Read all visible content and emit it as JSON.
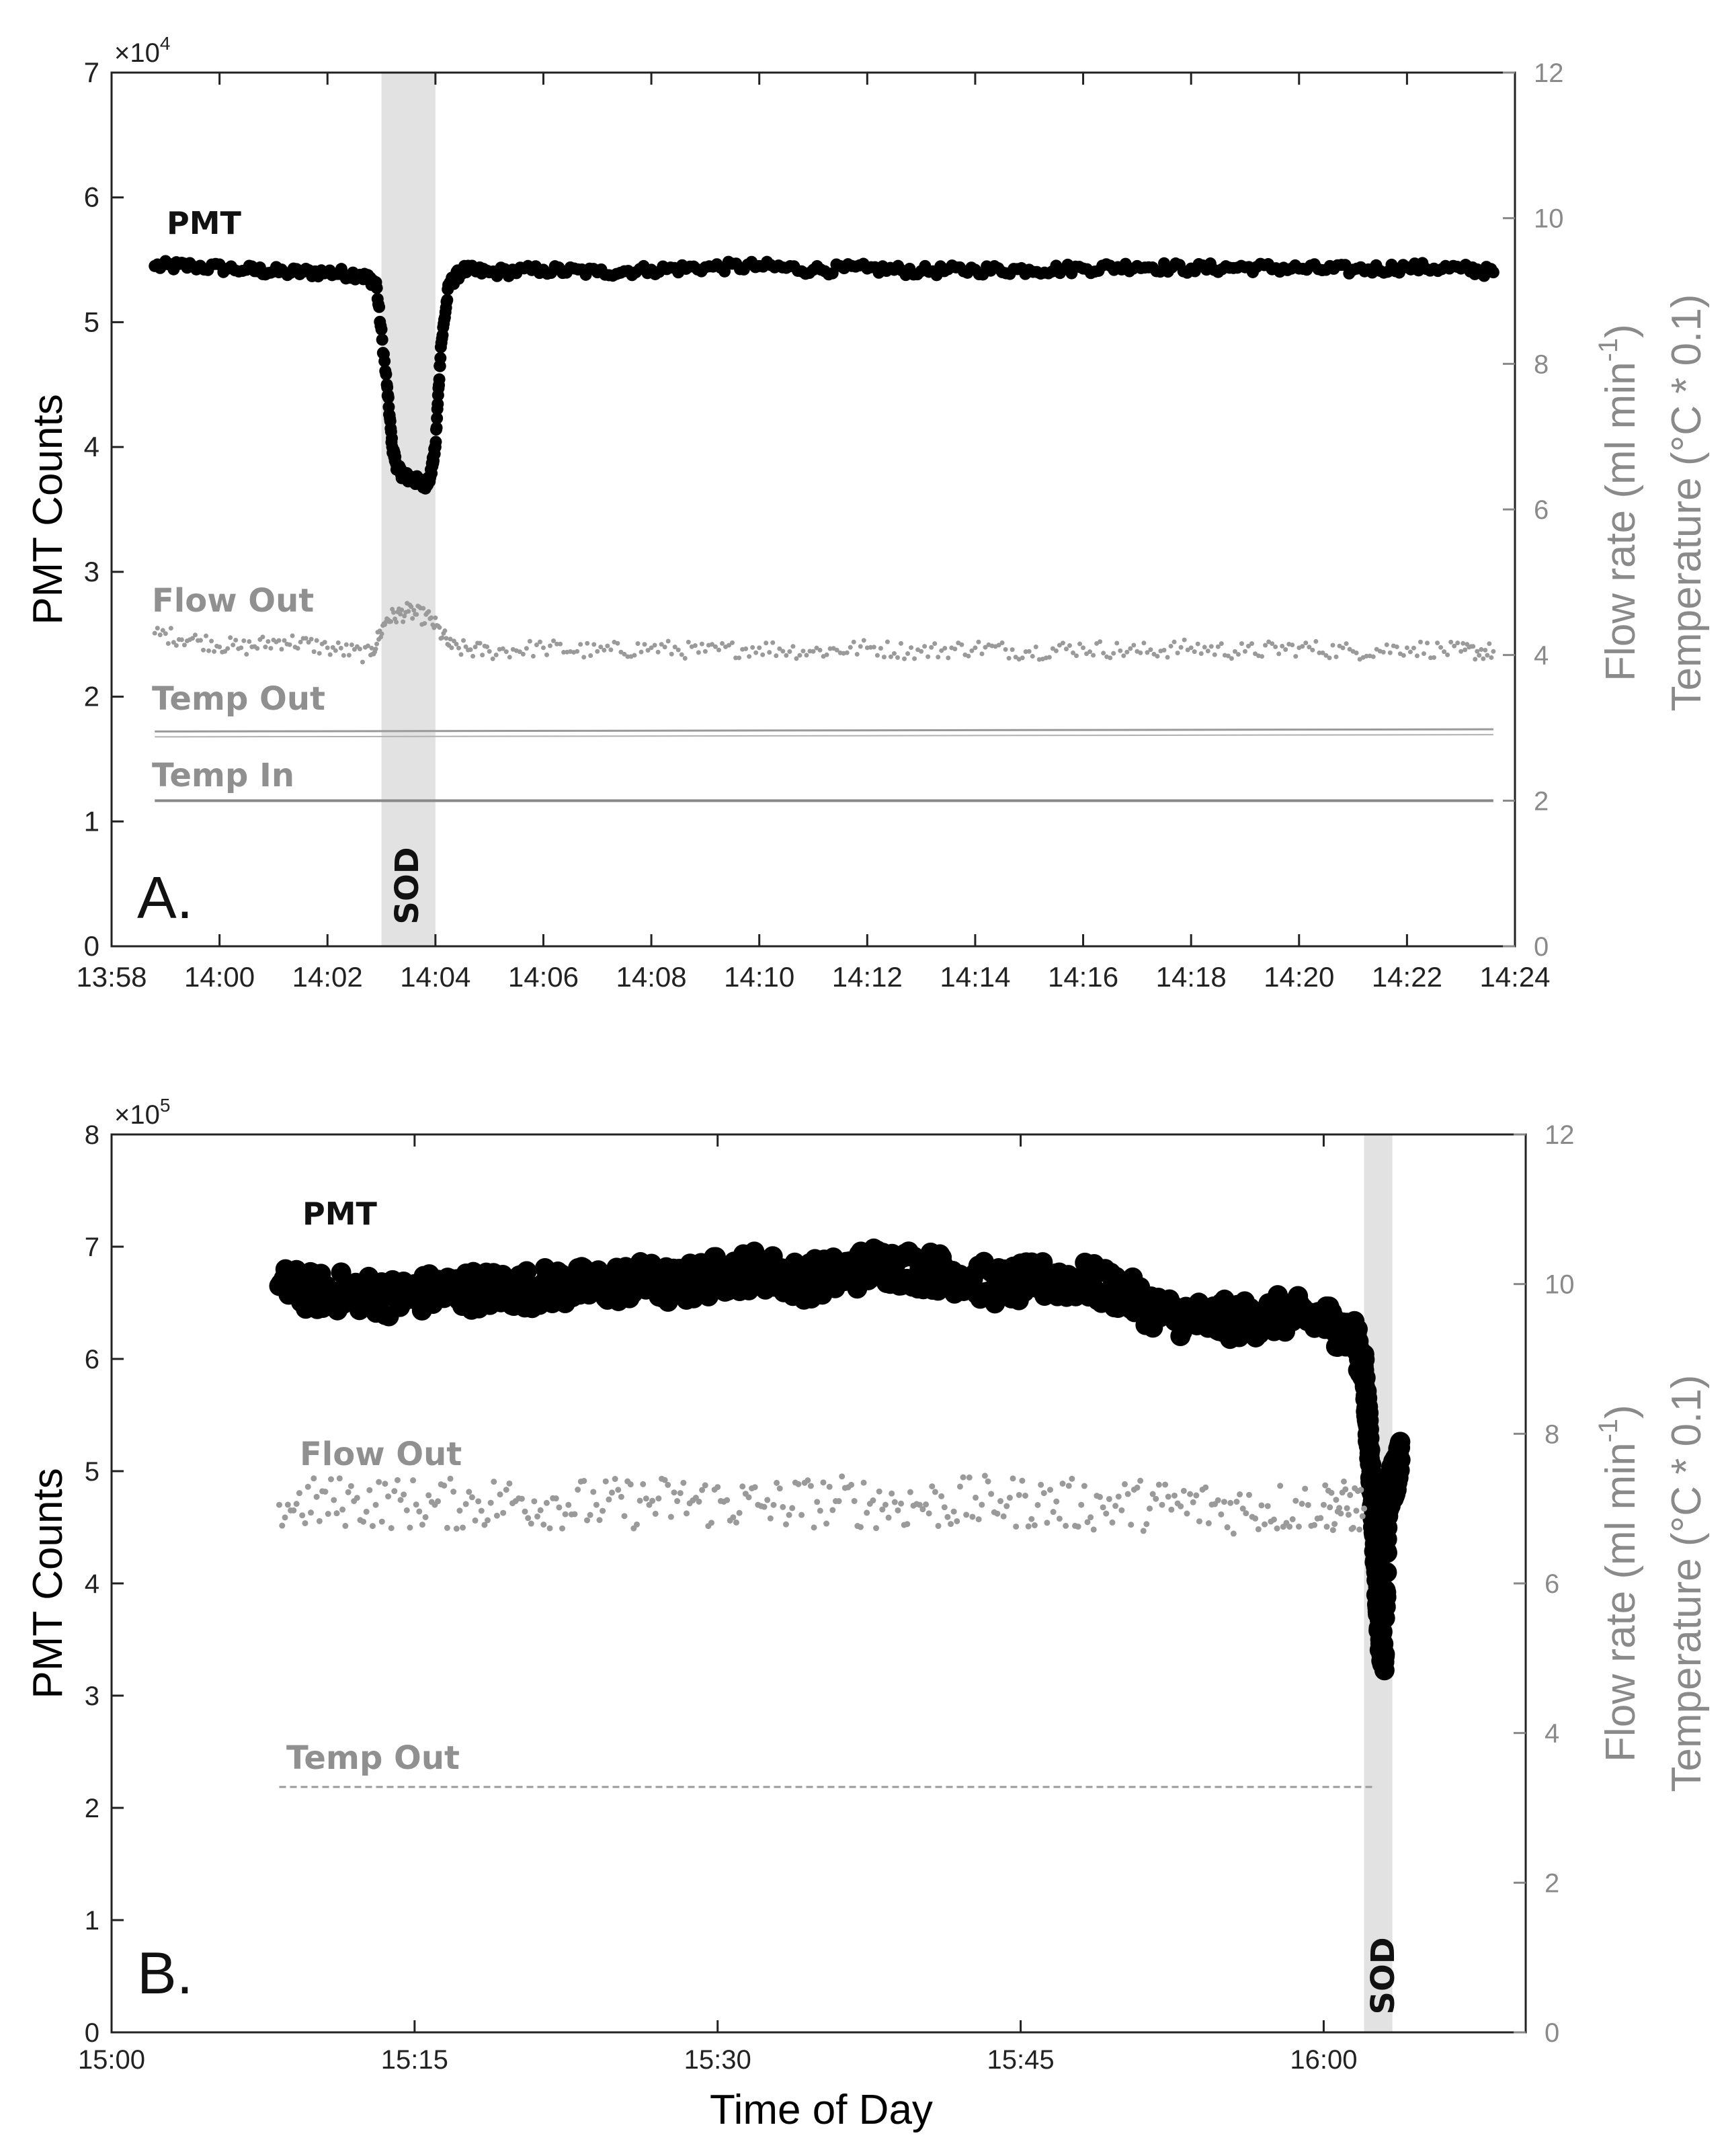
{
  "chart_data": [
    {
      "panel_label": "A.",
      "type": "scatter",
      "xlabel": "",
      "ylabel": "PMT Counts",
      "y2label_flow": "Flow rate (ml min",
      "y2label_flow_sup": "-1",
      "y2label_flow_end": ")",
      "y2label_temp": "Temperature (°C * 0.1)",
      "y_exponent_base": "×10",
      "y_exponent": "4",
      "xlim_minutes": [
        838,
        864
      ],
      "x_ticks": [
        {
          "v": 838,
          "label": "13:58"
        },
        {
          "v": 840,
          "label": "14:00"
        },
        {
          "v": 842,
          "label": "14:02"
        },
        {
          "v": 844,
          "label": "14:04"
        },
        {
          "v": 846,
          "label": "14:06"
        },
        {
          "v": 848,
          "label": "14:08"
        },
        {
          "v": 850,
          "label": "14:10"
        },
        {
          "v": 852,
          "label": "14:12"
        },
        {
          "v": 854,
          "label": "14:14"
        },
        {
          "v": 856,
          "label": "14:16"
        },
        {
          "v": 858,
          "label": "14:18"
        },
        {
          "v": 860,
          "label": "14:20"
        },
        {
          "v": 862,
          "label": "14:22"
        },
        {
          "v": 864,
          "label": "14:24"
        }
      ],
      "ylim": [
        0,
        7
      ],
      "y_ticks": [
        0,
        1,
        2,
        3,
        4,
        5,
        6,
        7
      ],
      "y2lim": [
        0,
        12
      ],
      "y2_ticks": [
        0,
        2,
        4,
        6,
        8,
        10,
        12
      ],
      "shaded_region": {
        "x_start": 843.0,
        "x_end": 844.0,
        "label": "SOD"
      },
      "series": [
        {
          "name": "PMT",
          "axis": "left",
          "x": [
            838.8,
            839.5,
            840.5,
            841.2,
            842.0,
            842.6,
            842.9,
            843.1,
            843.2,
            843.3,
            843.45,
            843.6,
            843.8,
            843.9,
            844.0,
            844.1,
            844.25,
            844.5,
            845.0,
            846.0,
            847.0,
            848.0,
            849.0,
            850.0,
            851.0,
            852.0,
            853.0,
            854.0,
            855.0,
            856.0,
            857.0,
            858.0,
            859.0,
            860.0,
            861.0,
            862.0,
            863.0,
            863.6
          ],
          "values": [
            5.45,
            5.45,
            5.42,
            5.4,
            5.4,
            5.38,
            5.32,
            4.5,
            4.0,
            3.82,
            3.76,
            3.74,
            3.7,
            3.75,
            4.0,
            4.8,
            5.3,
            5.42,
            5.4,
            5.42,
            5.4,
            5.42,
            5.44,
            5.45,
            5.42,
            5.43,
            5.41,
            5.42,
            5.42,
            5.43,
            5.45,
            5.43,
            5.44,
            5.43,
            5.42,
            5.44,
            5.43,
            5.4
          ]
        },
        {
          "name": "Flow Out",
          "axis": "right",
          "x": [
            838.8,
            839.6,
            840.4,
            841.2,
            842.0,
            842.8,
            843.1,
            843.5,
            843.9,
            844.3,
            845.0,
            846.0,
            847.0,
            848.0,
            849.0,
            850.0,
            851.0,
            852.0,
            853.0,
            854.0,
            855.0,
            856.0,
            857.0,
            858.0,
            859.0,
            860.0,
            861.0,
            862.0,
            863.0,
            863.6
          ],
          "values": [
            4.3,
            4.2,
            4.1,
            4.2,
            4.1,
            4.0,
            4.5,
            4.6,
            4.5,
            4.1,
            4.05,
            4.1,
            4.05,
            4.1,
            4.05,
            4.1,
            4.05,
            4.1,
            4.05,
            4.1,
            4.05,
            4.1,
            4.05,
            4.1,
            4.05,
            4.1,
            4.05,
            4.1,
            4.05,
            4.05
          ]
        },
        {
          "name": "Temp Out",
          "axis": "right",
          "x": [
            838.8,
            863.6
          ],
          "values": [
            2.95,
            2.98
          ]
        },
        {
          "name": "Temp In",
          "axis": "right",
          "x": [
            838.8,
            863.6
          ],
          "values": [
            2.0,
            2.0
          ]
        }
      ]
    },
    {
      "panel_label": "B.",
      "type": "scatter",
      "xlabel": "Time of Day",
      "ylabel": "PMT Counts",
      "y2label_flow": "Flow rate (ml min",
      "y2label_flow_sup": "-1",
      "y2label_flow_end": ")",
      "y2label_temp": "Temperature (°C * 0.1)",
      "y_exponent_base": "×10",
      "y_exponent": "5",
      "xlim_minutes": [
        900,
        970
      ],
      "x_ticks": [
        {
          "v": 900,
          "label": "15:00"
        },
        {
          "v": 915,
          "label": "15:15"
        },
        {
          "v": 930,
          "label": "15:30"
        },
        {
          "v": 945,
          "label": "15:45"
        },
        {
          "v": 960,
          "label": "16:00"
        }
      ],
      "ylim": [
        0,
        8
      ],
      "y_ticks": [
        0,
        1,
        2,
        3,
        4,
        5,
        6,
        7,
        8
      ],
      "y2lim": [
        0,
        12
      ],
      "y2_ticks": [
        0,
        2,
        4,
        6,
        8,
        10,
        12
      ],
      "shaded_region": {
        "x_start": 962.0,
        "x_end": 963.4,
        "label": "SOD"
      },
      "series": [
        {
          "name": "PMT",
          "axis": "left",
          "x": [
            908.3,
            910.0,
            912.0,
            914.0,
            916.0,
            918.0,
            920.0,
            922.0,
            924.0,
            926.0,
            928.0,
            930.0,
            932.0,
            934.0,
            936.0,
            938.0,
            940.0,
            942.0,
            944.0,
            946.0,
            948.0,
            950.0,
            952.0,
            954.0,
            956.0,
            958.0,
            960.0,
            961.5,
            962.0,
            962.2,
            962.4,
            962.6,
            962.8,
            963.0,
            963.2,
            963.4,
            963.6,
            963.8
          ],
          "values": [
            6.65,
            6.6,
            6.6,
            6.55,
            6.6,
            6.62,
            6.62,
            6.65,
            6.65,
            6.7,
            6.65,
            6.75,
            6.8,
            6.7,
            6.75,
            6.85,
            6.8,
            6.75,
            6.65,
            6.7,
            6.7,
            6.6,
            6.4,
            6.35,
            6.35,
            6.4,
            6.35,
            6.2,
            5.9,
            5.4,
            4.8,
            4.1,
            3.5,
            3.3,
            4.8,
            4.9,
            5.0,
            5.1
          ]
        },
        {
          "name": "Flow Out",
          "axis": "right",
          "x": [
            908.3,
            912.0,
            916.0,
            920.0,
            924.0,
            928.0,
            932.0,
            936.0,
            940.0,
            944.0,
            948.0,
            952.0,
            956.0,
            960.0,
            962.0
          ],
          "values": [
            7.05,
            7.1,
            7.05,
            7.1,
            7.05,
            7.1,
            7.05,
            7.1,
            7.05,
            7.1,
            7.05,
            7.05,
            7.0,
            7.05,
            7.0
          ]
        },
        {
          "name": "Temp Out",
          "axis": "right",
          "x": [
            908.3,
            962.5
          ],
          "values": [
            3.28,
            3.28
          ]
        }
      ]
    }
  ]
}
